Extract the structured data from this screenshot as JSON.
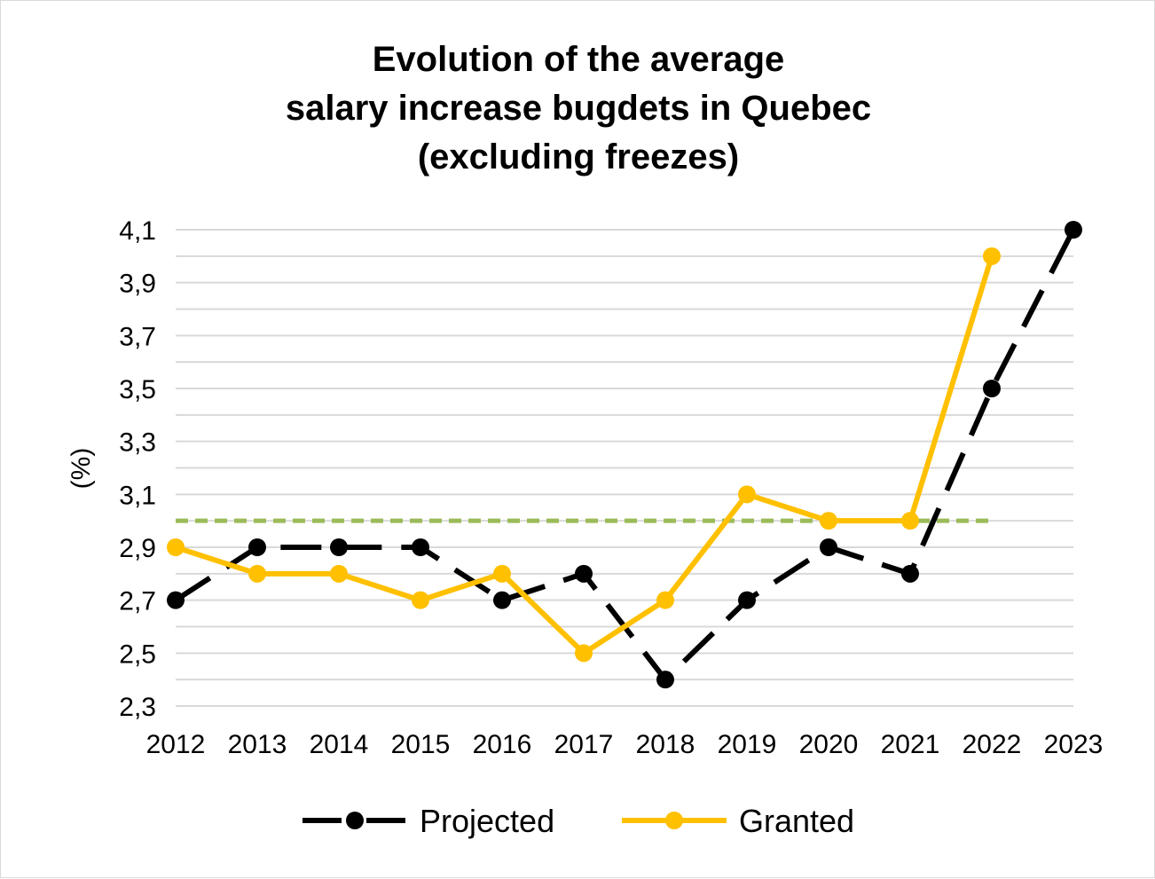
{
  "chart_data": {
    "type": "line",
    "title_lines": [
      "Evolution of the average",
      "salary increase bugdets in Quebec",
      "(excluding freezes)"
    ],
    "ylabel": "(%)",
    "ylim": [
      2.3,
      4.1
    ],
    "y_ticks": [
      "4,1",
      "3,9",
      "3,7",
      "3,5",
      "3,3",
      "3,1",
      "2,9",
      "2,7",
      "2,5",
      "2,3"
    ],
    "y_tick_values": [
      4.1,
      3.9,
      3.7,
      3.5,
      3.3,
      3.1,
      2.9,
      2.7,
      2.5,
      2.3
    ],
    "categories": [
      "2012",
      "2013",
      "2014",
      "2015",
      "2016",
      "2017",
      "2018",
      "2019",
      "2020",
      "2021",
      "2022",
      "2023"
    ],
    "grid": true,
    "legend_position": "bottom",
    "series": [
      {
        "name": "Projected",
        "style": "dashed",
        "color": "#000000",
        "values": [
          2.7,
          2.9,
          2.9,
          2.9,
          2.7,
          2.8,
          2.4,
          2.7,
          2.9,
          2.8,
          3.5,
          4.1
        ]
      },
      {
        "name": "Granted",
        "style": "solid",
        "color": "#FFC000",
        "values": [
          2.9,
          2.8,
          2.8,
          2.7,
          2.8,
          2.5,
          2.7,
          3.1,
          3.0,
          3.0,
          4.0,
          null
        ]
      }
    ],
    "reference_line": {
      "value": 3.0,
      "color": "#9BBB59",
      "style": "dashed",
      "x_start": "2012",
      "x_end": "2022"
    },
    "grid_color": "#D9D9D9"
  }
}
